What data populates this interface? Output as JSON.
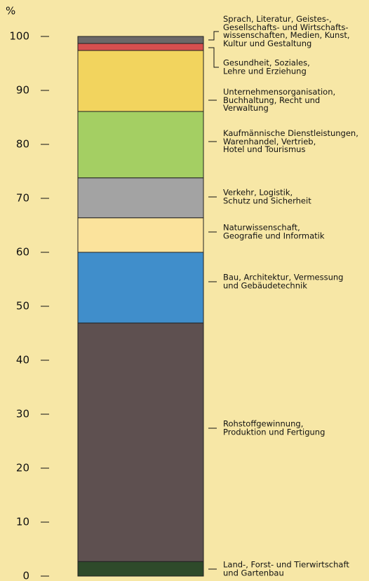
{
  "chart_data": {
    "type": "stacked_bar",
    "ylabel": "%",
    "ylim": [
      0,
      100
    ],
    "yticks": [
      0,
      10,
      20,
      30,
      40,
      50,
      60,
      70,
      80,
      90,
      100
    ],
    "series": [
      {
        "name": "Land-, Forst- und Tierwirtschaft\nund Gartenbau",
        "color": "#2e4a2a",
        "values": [
          2.7
        ]
      },
      {
        "name": "Rohstoffgewinnung,\nProduktion und Fertigung",
        "color": "#5e5050",
        "values": [
          44.2
        ]
      },
      {
        "name": "Bau, Architektur, Vermessung\nund Gebäudetechnik",
        "color": "#408ecb",
        "values": [
          13.1
        ]
      },
      {
        "name": "Naturwissenschaft,\nGeografie und Informatik",
        "color": "#fbe39c",
        "values": [
          6.4
        ]
      },
      {
        "name": "Verkehr, Logistik,\nSchutz und Sicherheit",
        "color": "#a3a3a3",
        "values": [
          7.4
        ]
      },
      {
        "name": "Kaufmännische Dienstleistungen,\nWarenhandel, Vertrieb,\nHotel und Tourismus",
        "color": "#a4cf63",
        "values": [
          12.3
        ]
      },
      {
        "name": "Unternehmensorganisation,\nBuchhaltung, Recht und\nVerwaltung",
        "color": "#f2d45e",
        "values": [
          11.3
        ]
      },
      {
        "name": "Gesundheit, Soziales,\nLehre und Erziehung",
        "color": "#d64f4f",
        "values": [
          1.3
        ]
      },
      {
        "name": "Sprach, Literatur, Geistes-,\nGesellschafts- und Wirtschafts-\nwissenschaften, Medien, Kunst,\nKultur und Gestaltung",
        "color": "#6c6868",
        "values": [
          1.3
        ]
      }
    ]
  }
}
